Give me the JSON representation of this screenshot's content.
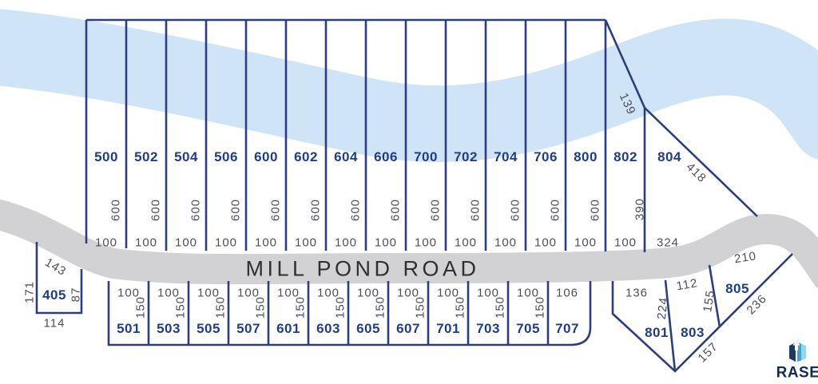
{
  "palette": {
    "river": "#cfe5f7",
    "road": "#d2d2d4",
    "boundary": "#2c3e82",
    "lot_number": "#1e3d8c",
    "dimension": "#4d505c",
    "road_label": "#2e2f33",
    "logo_navy": "#132c56",
    "logo_blue": "#3fa3cc",
    "logo_blue_light": "#9bd2e8"
  },
  "road": {
    "name": "MILL POND ROAD"
  },
  "lots_north": [
    {
      "id": "500",
      "frontage": "100",
      "depth": "600"
    },
    {
      "id": "502",
      "frontage": "100",
      "depth": "600"
    },
    {
      "id": "504",
      "frontage": "100",
      "depth": "600"
    },
    {
      "id": "506",
      "frontage": "100",
      "depth": "600"
    },
    {
      "id": "600",
      "frontage": "100",
      "depth": "600"
    },
    {
      "id": "602",
      "frontage": "100",
      "depth": "600"
    },
    {
      "id": "604",
      "frontage": "100",
      "depth": "600"
    },
    {
      "id": "606",
      "frontage": "100",
      "depth": "600"
    },
    {
      "id": "700",
      "frontage": "100",
      "depth": "600"
    },
    {
      "id": "702",
      "frontage": "100",
      "depth": "600"
    },
    {
      "id": "704",
      "frontage": "100",
      "depth": "600"
    },
    {
      "id": "706",
      "frontage": "100",
      "depth": "600"
    },
    {
      "id": "800",
      "frontage": "100",
      "depth": "600"
    }
  ],
  "lots_south": [
    {
      "id": "501",
      "frontage": "100",
      "depth": "150"
    },
    {
      "id": "503",
      "frontage": "100",
      "depth": "150"
    },
    {
      "id": "505",
      "frontage": "100",
      "depth": "150"
    },
    {
      "id": "507",
      "frontage": "100",
      "depth": "150"
    },
    {
      "id": "601",
      "frontage": "100",
      "depth": "150"
    },
    {
      "id": "603",
      "frontage": "100",
      "depth": "150"
    },
    {
      "id": "605",
      "frontage": "100",
      "depth": "150"
    },
    {
      "id": "607",
      "frontage": "100",
      "depth": "150"
    },
    {
      "id": "701",
      "frontage": "100",
      "depth": "150"
    },
    {
      "id": "703",
      "frontage": "100",
      "depth": "150"
    },
    {
      "id": "705",
      "frontage": "100",
      "depth": "150"
    },
    {
      "id": "707",
      "frontage": "106",
      "depth": null
    }
  ],
  "lot_405": {
    "id": "405",
    "north_edge": "143",
    "west_edge": "171",
    "east_edge": "87",
    "south_edge": "114"
  },
  "lot_802": {
    "id": "802",
    "northwest_edge": "139",
    "depth": "390",
    "frontage": "100"
  },
  "lot_804": {
    "id": "804",
    "hypotenuse": "418",
    "frontage": "324"
  },
  "lot_801": {
    "id": "801",
    "frontage": "136",
    "east_edge": "224"
  },
  "lot_803": {
    "id": "803",
    "frontage": "112",
    "east_edge": "155",
    "southeast_edge": "157"
  },
  "lot_805": {
    "id": "805",
    "frontage": "210",
    "southeast_edge": "236"
  },
  "logo": {
    "text": "RASE"
  }
}
